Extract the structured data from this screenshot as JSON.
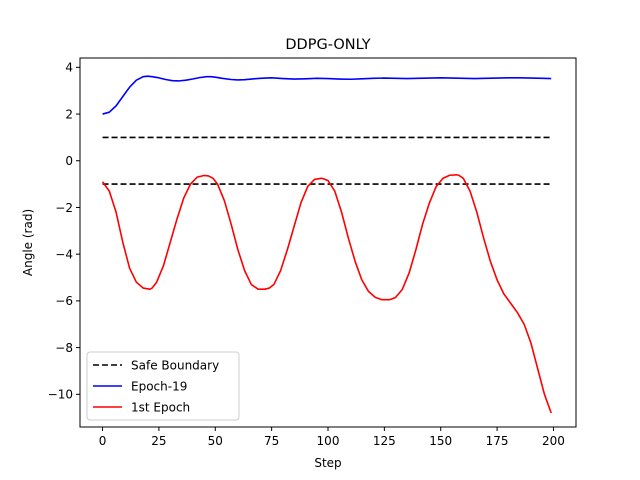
{
  "chart_data": {
    "type": "line",
    "title": "DDPG-ONLY",
    "xlabel": "Step",
    "ylabel": "Angle (rad)",
    "xlim": [
      -10,
      210
    ],
    "ylim": [
      -11.4,
      4.4
    ],
    "xticks": [
      0,
      25,
      50,
      75,
      100,
      125,
      150,
      175,
      200
    ],
    "yticks": [
      4,
      2,
      0,
      -2,
      -4,
      -6,
      -8,
      -10
    ],
    "ytick_labels": [
      "4",
      "2",
      "0",
      "−2",
      "−4",
      "−6",
      "−8",
      "−10"
    ],
    "grid": false,
    "legend_position": "lower-left",
    "series": [
      {
        "name": "Safe Boundary",
        "color": "#000000",
        "style": "dashed",
        "segments": [
          {
            "x": [
              0,
              199
            ],
            "y": [
              1,
              1
            ]
          },
          {
            "x": [
              0,
              199
            ],
            "y": [
              -1,
              -1
            ]
          }
        ]
      },
      {
        "name": "Epoch-19",
        "color": "#0000ff",
        "style": "solid",
        "x": [
          0,
          3,
          6,
          9,
          12,
          15,
          18,
          20,
          22,
          25,
          28,
          31,
          34,
          37,
          40,
          43,
          46,
          48,
          50,
          53,
          57,
          60,
          63,
          66,
          70,
          75,
          80,
          85,
          90,
          95,
          100,
          105,
          110,
          115,
          120,
          125,
          130,
          135,
          140,
          145,
          150,
          155,
          160,
          165,
          170,
          175,
          180,
          185,
          190,
          195,
          199
        ],
        "y": [
          2.0,
          2.08,
          2.35,
          2.75,
          3.15,
          3.45,
          3.6,
          3.62,
          3.6,
          3.55,
          3.48,
          3.43,
          3.42,
          3.45,
          3.5,
          3.56,
          3.6,
          3.6,
          3.58,
          3.53,
          3.48,
          3.46,
          3.47,
          3.5,
          3.53,
          3.55,
          3.52,
          3.5,
          3.51,
          3.53,
          3.52,
          3.5,
          3.49,
          3.51,
          3.53,
          3.54,
          3.53,
          3.52,
          3.53,
          3.54,
          3.55,
          3.54,
          3.53,
          3.52,
          3.53,
          3.54,
          3.55,
          3.55,
          3.54,
          3.53,
          3.52
        ]
      },
      {
        "name": "1st Epoch",
        "color": "#ff0000",
        "style": "solid",
        "x": [
          0,
          3,
          6,
          9,
          12,
          15,
          18,
          21,
          22,
          24,
          27,
          30,
          33,
          36,
          39,
          42,
          45,
          47,
          49,
          51,
          54,
          57,
          60,
          63,
          66,
          69,
          72,
          74,
          76,
          79,
          82,
          85,
          88,
          91,
          94,
          97,
          98,
          100,
          103,
          106,
          109,
          112,
          115,
          118,
          121,
          124,
          127,
          128,
          130,
          133,
          136,
          139,
          142,
          145,
          148,
          151,
          154,
          157,
          158,
          160,
          163,
          166,
          169,
          172,
          175,
          178,
          181,
          184,
          187,
          190,
          193,
          196,
          199
        ],
        "y": [
          -0.9,
          -1.3,
          -2.2,
          -3.5,
          -4.6,
          -5.2,
          -5.45,
          -5.5,
          -5.45,
          -5.2,
          -4.5,
          -3.5,
          -2.5,
          -1.6,
          -1.0,
          -0.7,
          -0.63,
          -0.65,
          -0.75,
          -1.0,
          -1.7,
          -2.7,
          -3.8,
          -4.7,
          -5.3,
          -5.5,
          -5.5,
          -5.45,
          -5.3,
          -4.7,
          -3.8,
          -2.8,
          -1.8,
          -1.1,
          -0.8,
          -0.75,
          -0.77,
          -0.85,
          -1.3,
          -2.2,
          -3.3,
          -4.3,
          -5.1,
          -5.6,
          -5.85,
          -5.95,
          -5.95,
          -5.93,
          -5.85,
          -5.5,
          -4.8,
          -3.8,
          -2.7,
          -1.8,
          -1.1,
          -0.75,
          -0.62,
          -0.6,
          -0.62,
          -0.75,
          -1.3,
          -2.2,
          -3.3,
          -4.3,
          -5.1,
          -5.7,
          -6.1,
          -6.5,
          -7.0,
          -7.8,
          -8.9,
          -10.0,
          -10.8
        ]
      }
    ]
  }
}
